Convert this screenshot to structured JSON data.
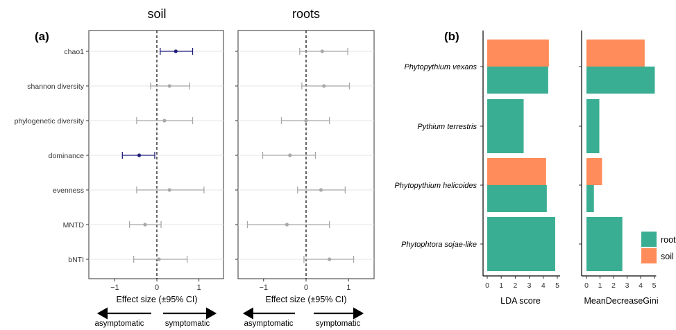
{
  "figure": {
    "panel_a_label": "(a)",
    "panel_b_label": "(b)"
  },
  "chart_data": [
    {
      "type": "scatter",
      "title": "soil",
      "xlabel": "Effect size (±95% CI)",
      "xlim": [
        -1.6,
        1.6
      ],
      "xticks": [
        "−1",
        "0",
        "1"
      ],
      "xtick_values": [
        -1,
        0,
        1
      ],
      "grid": true,
      "reference_line": 0,
      "categories": [
        "chao1",
        "shannon diversity",
        "phylogenetic diversity",
        "dominance",
        "evenness",
        "MNTD",
        "bNTI"
      ],
      "estimates": [
        0.45,
        0.3,
        0.18,
        -0.42,
        0.3,
        -0.28,
        0.05
      ],
      "ci_low": [
        0.08,
        -0.15,
        -0.48,
        -0.82,
        -0.48,
        -0.65,
        -0.55
      ],
      "ci_high": [
        0.85,
        0.78,
        0.85,
        -0.05,
        1.12,
        0.1,
        0.72
      ],
      "significant": [
        true,
        false,
        false,
        true,
        false,
        false,
        false
      ],
      "colors": {
        "significant": "#1f1f7a",
        "nonsignificant": "#a8a8a8"
      }
    },
    {
      "type": "scatter",
      "title": "roots",
      "xlabel": "Effect size (±95% CI)",
      "xlim": [
        -1.6,
        1.6
      ],
      "xticks": [
        "−1",
        "0",
        "1"
      ],
      "xtick_values": [
        -1,
        0,
        1
      ],
      "grid": true,
      "reference_line": 0,
      "categories": [
        "chao1",
        "shannon diversity",
        "phylogenetic diversity",
        "dominance",
        "evenness",
        "MNTD",
        "bNTI"
      ],
      "estimates": [
        0.38,
        0.42,
        0.0,
        -0.38,
        0.35,
        -0.45,
        0.55
      ],
      "ci_low": [
        -0.15,
        -0.1,
        -0.58,
        -1.02,
        -0.2,
        -1.38,
        -0.05
      ],
      "ci_high": [
        0.98,
        1.02,
        0.55,
        0.22,
        0.92,
        0.55,
        1.12
      ],
      "significant": [
        false,
        false,
        false,
        false,
        false,
        false,
        false
      ],
      "colors": {
        "significant": "#1f1f7a",
        "nonsignificant": "#a8a8a8"
      }
    },
    {
      "type": "bar",
      "orientation": "horizontal",
      "xlabel": "LDA score",
      "xlim": [
        -0.2,
        5.2
      ],
      "xticks": [
        "0",
        "1",
        "2",
        "3",
        "4",
        "5"
      ],
      "xtick_values": [
        0,
        1,
        2,
        3,
        4,
        5
      ],
      "categories": [
        "Phytopythium vexans",
        "Pythium terrestris",
        "Phytopythium helicoides",
        "Phytophtora sojae-like"
      ],
      "series": [
        {
          "name": "soil",
          "color": "#ff8c5a",
          "values": [
            4.4,
            null,
            4.2,
            null
          ]
        },
        {
          "name": "roots",
          "color": "#3aae93",
          "values": [
            4.35,
            2.6,
            4.25,
            4.85
          ]
        }
      ]
    },
    {
      "type": "bar",
      "orientation": "horizontal",
      "xlabel": "MeanDecreaseGini",
      "xlim": [
        -0.2,
        5.2
      ],
      "xticks": [
        "0",
        "1",
        "2",
        "3",
        "4",
        "5"
      ],
      "xtick_values": [
        0,
        1,
        2,
        3,
        4,
        5
      ],
      "categories": [
        "Phytopythium vexans",
        "Pythium terrestris",
        "Phytopythium helicoides",
        "Phytophtora sojae-like"
      ],
      "series": [
        {
          "name": "soil",
          "color": "#ff8c5a",
          "values": [
            4.3,
            null,
            1.15,
            null
          ]
        },
        {
          "name": "roots",
          "color": "#3aae93",
          "values": [
            5.05,
            0.95,
            0.55,
            2.65
          ]
        }
      ]
    }
  ],
  "arrows": {
    "left_label": "asymptomatic",
    "right_label": "symptomatic"
  },
  "legend": {
    "placement": "right",
    "entries": [
      {
        "label": "root",
        "color": "#3aae93"
      },
      {
        "label": "soil",
        "color": "#ff8c5a"
      }
    ]
  }
}
